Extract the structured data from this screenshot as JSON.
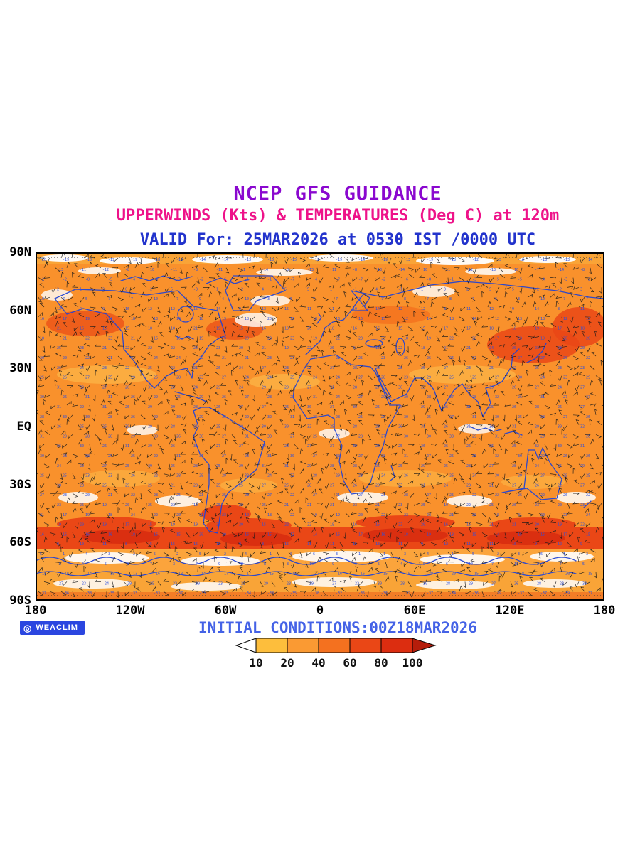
{
  "chart_data": {
    "type": "heatmap",
    "title": "NCEP GFS GUIDANCE",
    "subtitle": "UPPERWINDS (Kts) & TEMPERATURES (Deg C) at 120m",
    "valid_line": "VALID For: 25MAR2026 at 0530 IST /0000 UTC",
    "initial_conditions": "INITIAL CONDITIONS:00Z18MAR2026",
    "x_axis": {
      "ticks": [
        "180",
        "120W",
        "60W",
        "0",
        "60E",
        "120E",
        "180"
      ]
    },
    "y_axis": {
      "ticks": [
        "90N",
        "60N",
        "30N",
        "EQ",
        "30S",
        "60S",
        "90S"
      ]
    },
    "legend": {
      "levels": [
        10,
        20,
        40,
        60,
        80,
        100
      ],
      "colors": [
        "#FDBE3C",
        "#FA9A33",
        "#F4711F",
        "#EA4716",
        "#DC2D10"
      ],
      "position": "bottom"
    }
  },
  "branding": {
    "weaclim": "WEACLIM"
  },
  "colors": {
    "title": "#8A08CF",
    "subtitle": "#EE1289",
    "valid": "#2233CC",
    "initial": "#4462E6",
    "coastline": "#2244D4",
    "shading_base": "#F9912C",
    "badge_bg": "#2B46E0",
    "left_arrow": "#FFFFFF",
    "right_arrow": "#B51D0B"
  }
}
